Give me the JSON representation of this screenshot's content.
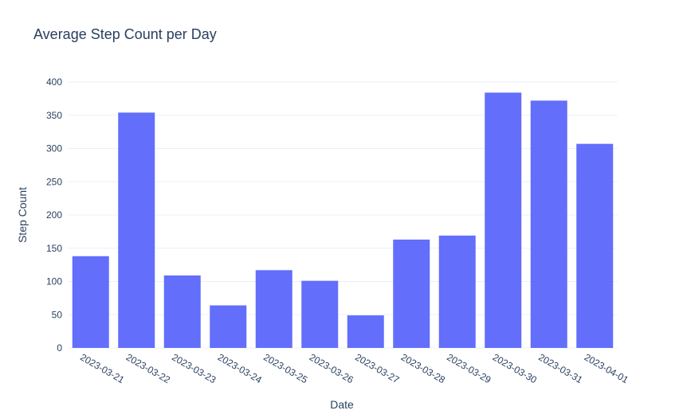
{
  "chart_data": {
    "type": "bar",
    "title": "Average Step Count per Day",
    "xlabel": "Date",
    "ylabel": "Step Count",
    "categories": [
      "2023-03-21",
      "2023-03-22",
      "2023-03-23",
      "2023-03-24",
      "2023-03-25",
      "2023-03-26",
      "2023-03-27",
      "2023-03-28",
      "2023-03-29",
      "2023-03-30",
      "2023-03-31",
      "2023-04-01"
    ],
    "values": [
      138,
      354,
      109,
      64,
      117,
      101,
      49,
      163,
      169,
      384,
      372,
      307
    ],
    "ylim": [
      0,
      400
    ],
    "yticks": [
      0,
      50,
      100,
      150,
      200,
      250,
      300,
      350,
      400
    ],
    "grid": true,
    "bar_color": "#636efa",
    "text_color": "#2a3f5f",
    "grid_color": "#ebf0f8"
  }
}
